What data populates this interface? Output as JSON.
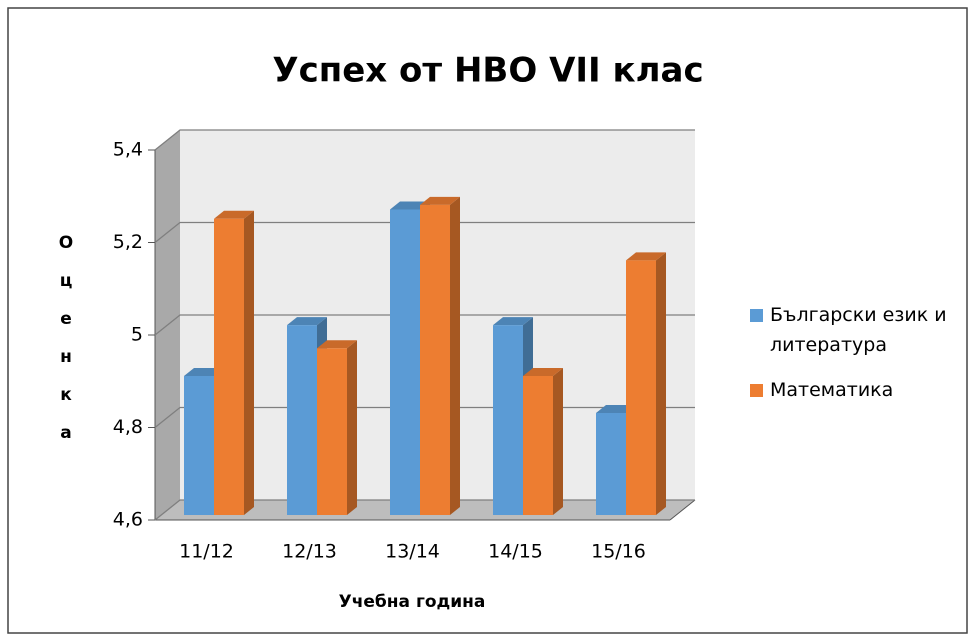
{
  "chart_data": {
    "type": "bar3d",
    "title": "Успех от НВО VII клас",
    "categories": [
      "11/12",
      "12/13",
      "13/14",
      "14/15",
      "15/16"
    ],
    "series": [
      {
        "name": "Български език и литература",
        "color": "#5b9bd5",
        "values": [
          4.92,
          5.03,
          5.28,
          5.03,
          4.84
        ]
      },
      {
        "name": "Математика",
        "color": "#ed7d31",
        "values": [
          5.26,
          4.98,
          5.29,
          4.92,
          5.17
        ]
      }
    ],
    "ylim": [
      4.6,
      5.4
    ],
    "yticks": [
      {
        "value": 4.6,
        "label": "4,6"
      },
      {
        "value": 4.8,
        "label": "4,8"
      },
      5,
      {
        "value": 5.2,
        "label": "5,2"
      },
      {
        "value": 5.4,
        "label": "5,4"
      }
    ],
    "xlabel": "Учебна година",
    "ylabel": "Оценка",
    "grid": true,
    "legend": "right"
  }
}
